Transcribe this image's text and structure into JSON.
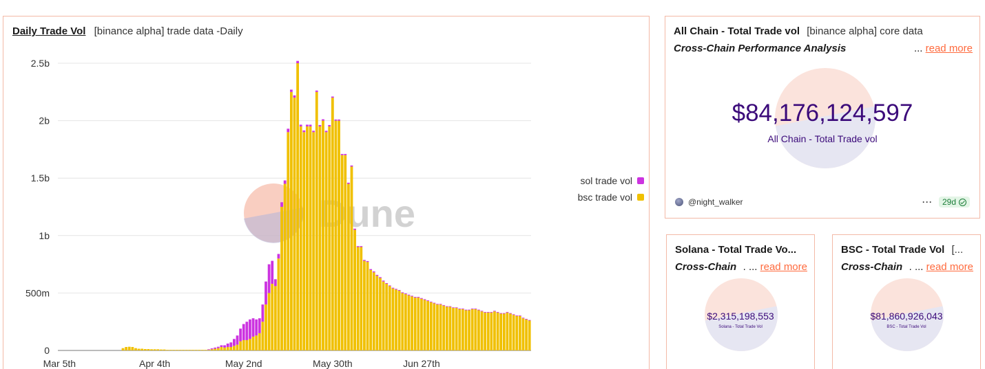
{
  "chart_panel": {
    "title": "Daily Trade Vol",
    "subtitle": "[binance alpha] trade data -Daily",
    "watermark": "Dune"
  },
  "chart_data": {
    "type": "bar",
    "stacked": true,
    "x_tick_labels": [
      "Mar 5th",
      "Apr 4th",
      "May 2nd",
      "May 30th",
      "Jun 27th"
    ],
    "x_tick_days": [
      0,
      30,
      58,
      86,
      114
    ],
    "y_tick_labels": [
      "0",
      "500m",
      "1b",
      "1.5b",
      "2b",
      "2.5b"
    ],
    "y_tick_values": [
      0,
      500000000,
      1000000000,
      1500000000,
      2000000000,
      2500000000
    ],
    "ylim": [
      0,
      2500000000
    ],
    "grid": true,
    "legend_position": "right",
    "series": [
      {
        "name": "sol trade vol",
        "color": "#cc33e0",
        "values": [
          0,
          0,
          0,
          0,
          0,
          0,
          0,
          0,
          0,
          0,
          0,
          0,
          0,
          0,
          0,
          0,
          0,
          0,
          0,
          0,
          0,
          0,
          0,
          0,
          0,
          0,
          0,
          0,
          0,
          0,
          0,
          0,
          0,
          0,
          0,
          0,
          0,
          0,
          0,
          0,
          0,
          0,
          0,
          0,
          0,
          0,
          0,
          5000000,
          8000000,
          10000000,
          12000000,
          15000000,
          20000000,
          30000000,
          40000000,
          60000000,
          80000000,
          110000000,
          140000000,
          160000000,
          170000000,
          160000000,
          140000000,
          130000000,
          150000000,
          200000000,
          250000000,
          200000000,
          60000000,
          40000000,
          40000000,
          30000000,
          30000000,
          20000000,
          20000000,
          20000000,
          15000000,
          15000000,
          15000000,
          15000000,
          12000000,
          12000000,
          12000000,
          12000000,
          12000000,
          12000000,
          10000000,
          10000000,
          10000000,
          10000000,
          10000000,
          10000000,
          10000000,
          10000000,
          8000000,
          8000000,
          8000000,
          8000000,
          8000000,
          8000000,
          8000000,
          8000000,
          8000000,
          6000000,
          6000000,
          6000000,
          6000000,
          6000000,
          6000000,
          6000000,
          6000000,
          6000000,
          6000000,
          6000000,
          6000000,
          6000000,
          6000000,
          5000000,
          5000000,
          5000000,
          5000000,
          5000000,
          5000000,
          5000000,
          5000000,
          5000000,
          5000000,
          5000000,
          5000000,
          5000000,
          5000000,
          5000000,
          5000000,
          5000000,
          5000000,
          5000000,
          5000000,
          5000000,
          5000000,
          5000000,
          5000000,
          5000000,
          5000000,
          5000000,
          5000000,
          5000000,
          5000000,
          5000000,
          5000000,
          5000000
        ]
      },
      {
        "name": "bsc trade vol",
        "color": "#f0c000",
        "values": [
          0,
          0,
          0,
          0,
          0,
          0,
          0,
          0,
          0,
          0,
          0,
          0,
          0,
          0,
          0,
          0,
          0,
          0,
          0,
          0,
          20000000,
          30000000,
          32000000,
          30000000,
          20000000,
          15000000,
          15000000,
          12000000,
          12000000,
          10000000,
          10000000,
          10000000,
          8000000,
          8000000,
          5000000,
          5000000,
          5000000,
          5000000,
          5000000,
          5000000,
          5000000,
          5000000,
          5000000,
          5000000,
          5000000,
          5000000,
          5000000,
          5000000,
          10000000,
          15000000,
          20000000,
          30000000,
          25000000,
          30000000,
          30000000,
          40000000,
          50000000,
          80000000,
          90000000,
          90000000,
          100000000,
          120000000,
          130000000,
          150000000,
          250000000,
          400000000,
          500000000,
          580000000,
          560000000,
          800000000,
          1250000000,
          1450000000,
          1900000000,
          2250000000,
          2200000000,
          2500000000,
          1950000000,
          1900000000,
          1950000000,
          1950000000,
          1900000000,
          2250000000,
          1950000000,
          2000000000,
          1900000000,
          1950000000,
          2200000000,
          2000000000,
          2000000000,
          1700000000,
          1700000000,
          1450000000,
          1600000000,
          1050000000,
          900000000,
          900000000,
          780000000,
          770000000,
          700000000,
          680000000,
          650000000,
          630000000,
          600000000,
          580000000,
          560000000,
          540000000,
          530000000,
          520000000,
          500000000,
          490000000,
          480000000,
          470000000,
          460000000,
          460000000,
          450000000,
          440000000,
          430000000,
          420000000,
          410000000,
          400000000,
          400000000,
          390000000,
          380000000,
          380000000,
          370000000,
          370000000,
          360000000,
          360000000,
          350000000,
          350000000,
          360000000,
          360000000,
          350000000,
          340000000,
          330000000,
          330000000,
          330000000,
          340000000,
          330000000,
          320000000,
          320000000,
          330000000,
          320000000,
          310000000,
          300000000,
          300000000,
          280000000,
          270000000,
          260000000
        ]
      }
    ]
  },
  "all_chain": {
    "title": "All Chain - Total Trade vol",
    "subtitle": "[binance alpha] core data",
    "description": "Cross-Chain Performance Analysis",
    "ellipsis": "...",
    "read_more": "read more",
    "value": "$84,176,124,597",
    "value_label": "All Chain - Total Trade vol",
    "author": "@night_walker",
    "more": "···",
    "age": "29d"
  },
  "solana": {
    "title": "Solana - Total Trade Vo...",
    "description": "Cross-Chain",
    "ellipsis": ". ...",
    "read_more": "read more",
    "value": "$2,315,198,553",
    "value_label": "Solana - Total Trade Vol"
  },
  "bsc": {
    "title": "BSC - Total Trade Vol",
    "subtitle": "[...",
    "description": "Cross-Chain",
    "ellipsis": ". ...",
    "read_more": "read more",
    "value": "$81,860,926,043",
    "value_label": "BSC - Total Trade Vol"
  }
}
